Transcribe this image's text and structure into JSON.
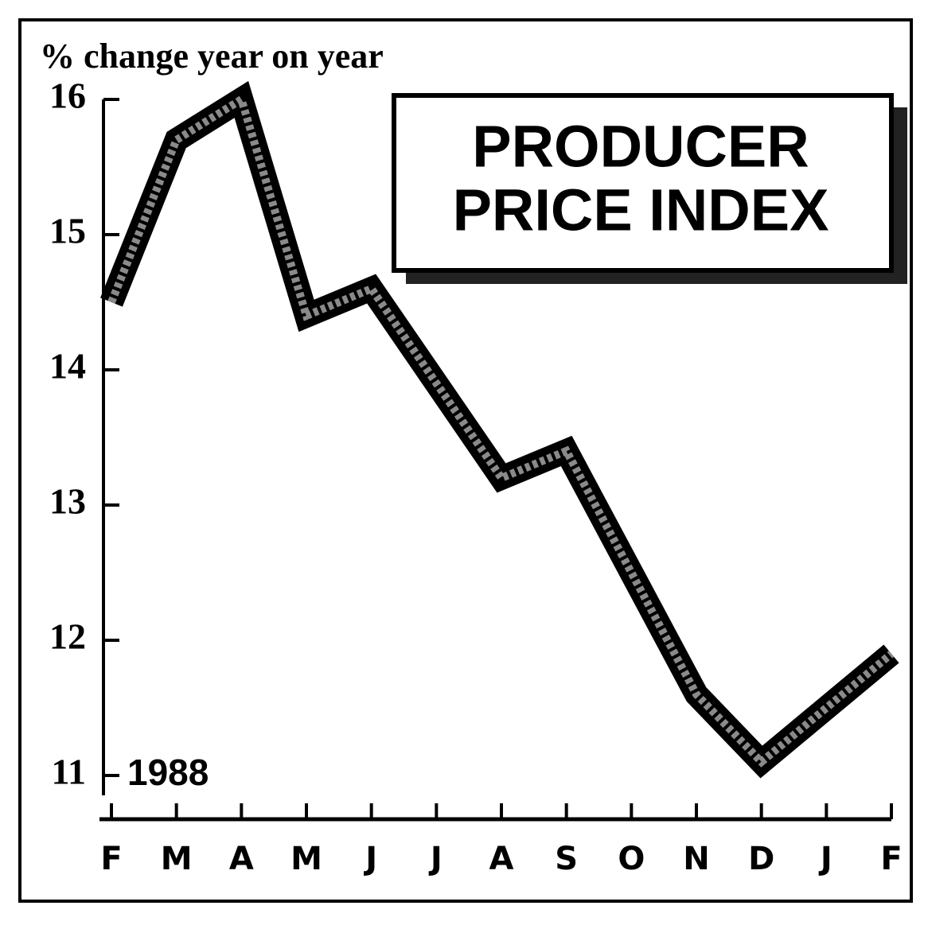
{
  "chart_data": {
    "type": "line",
    "y_label": "% change year on year",
    "title_lines": [
      "PRODUCER",
      "PRICE INDEX"
    ],
    "annotation": "1988",
    "categories": [
      "F",
      "M",
      "A",
      "M",
      "J",
      "J",
      "A",
      "S",
      "O",
      "N",
      "D",
      "J",
      "F"
    ],
    "values": [
      14.5,
      15.7,
      16.0,
      14.4,
      14.6,
      13.9,
      13.2,
      13.4,
      12.5,
      11.6,
      11.1,
      11.5,
      11.9
    ],
    "color": "#000000",
    "ylim": [
      10.7,
      16.1
    ],
    "yticks": [
      11,
      12,
      13,
      14,
      15,
      16
    ],
    "grid": false
  }
}
